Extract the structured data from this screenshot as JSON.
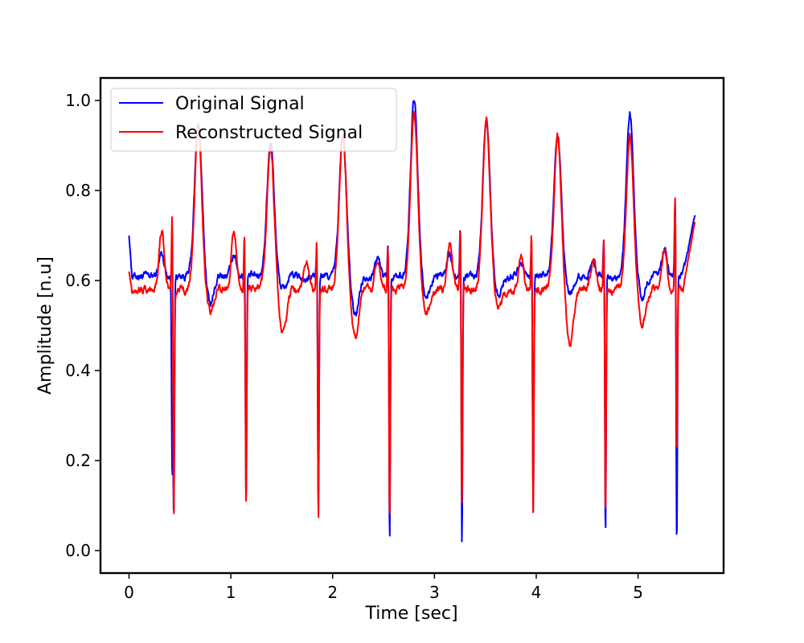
{
  "chart_data": {
    "type": "line",
    "xlabel": "Time [sec]",
    "ylabel": "Amplitude [n.u]",
    "xlim": [
      -0.28,
      5.84
    ],
    "ylim": [
      -0.05,
      1.05
    ],
    "xticks": [
      0,
      1,
      2,
      3,
      4,
      5
    ],
    "yticks": [
      0.0,
      0.2,
      0.4,
      0.6,
      0.8,
      1.0
    ],
    "xtick_labels": [
      "0",
      "1",
      "2",
      "3",
      "4",
      "5"
    ],
    "ytick_labels": [
      "0.0",
      "0.2",
      "0.4",
      "0.6",
      "0.8",
      "1.0"
    ],
    "grid": false,
    "legend_position": "top-left",
    "duration_sec": 5.56,
    "series": [
      {
        "name": "Original Signal",
        "color": "#0000ff",
        "start": 0.7,
        "end": 0.745,
        "baseline": 0.61,
        "beats": [
          {
            "r": 0.44,
            "peak": 0.19,
            "trough": 0.08,
            "t_peak": 0.95,
            "dip": 0.55,
            "p": 0.66
          },
          {
            "r": 1.15,
            "peak": 0.62,
            "trough": 0.11,
            "t_peak": 0.91,
            "dip": 0.58,
            "p": 0.66
          },
          {
            "r": 1.86,
            "peak": 0.66,
            "trough": 0.08,
            "t_peak": 0.92,
            "dip": 0.52,
            "p": 0.6
          },
          {
            "r": 2.56,
            "peak": 0.69,
            "trough": 0.02,
            "t_peak": 1.0,
            "dip": 0.56,
            "p": 0.65
          },
          {
            "r": 3.27,
            "peak": 0.73,
            "trough": 0.005,
            "t_peak": 0.96,
            "dip": 0.57,
            "p": 0.66
          },
          {
            "r": 3.97,
            "peak": 0.7,
            "trough": 0.09,
            "t_peak": 0.92,
            "dip": 0.57,
            "p": 0.64
          },
          {
            "r": 4.68,
            "peak": 0.7,
            "trough": 0.035,
            "t_peak": 0.97,
            "dip": 0.56,
            "p": 0.64
          },
          {
            "r": 5.38,
            "peak": 0.79,
            "trough": 0.0,
            "t_peak": 0.93,
            "dip": 0.58,
            "p": 0.67
          }
        ]
      },
      {
        "name": "Reconstructed Signal",
        "color": "#ff0000",
        "start": 0.62,
        "end": 0.73,
        "baseline": 0.58,
        "beats": [
          {
            "r": 0.44,
            "peak": 0.755,
            "trough": 0.075,
            "t_peak": 0.94,
            "dip": 0.53,
            "p": 0.71
          },
          {
            "r": 1.15,
            "peak": 0.715,
            "trough": 0.105,
            "t_peak": 0.9,
            "dip": 0.48,
            "p": 0.71
          },
          {
            "r": 1.86,
            "peak": 0.69,
            "trough": 0.08,
            "t_peak": 0.92,
            "dip": 0.47,
            "p": 0.64
          },
          {
            "r": 2.56,
            "peak": 0.68,
            "trough": 0.07,
            "t_peak": 0.97,
            "dip": 0.53,
            "p": 0.65
          },
          {
            "r": 3.27,
            "peak": 0.72,
            "trough": 0.09,
            "t_peak": 0.96,
            "dip": 0.54,
            "p": 0.68
          },
          {
            "r": 3.97,
            "peak": 0.71,
            "trough": 0.085,
            "t_peak": 0.92,
            "dip": 0.46,
            "p": 0.65
          },
          {
            "r": 4.68,
            "peak": 0.7,
            "trough": 0.08,
            "t_peak": 0.92,
            "dip": 0.5,
            "p": 0.65
          },
          {
            "r": 5.38,
            "peak": 0.79,
            "trough": 0.21,
            "t_peak": 0.92,
            "dip": 0.54,
            "p": 0.67
          }
        ]
      }
    ]
  }
}
